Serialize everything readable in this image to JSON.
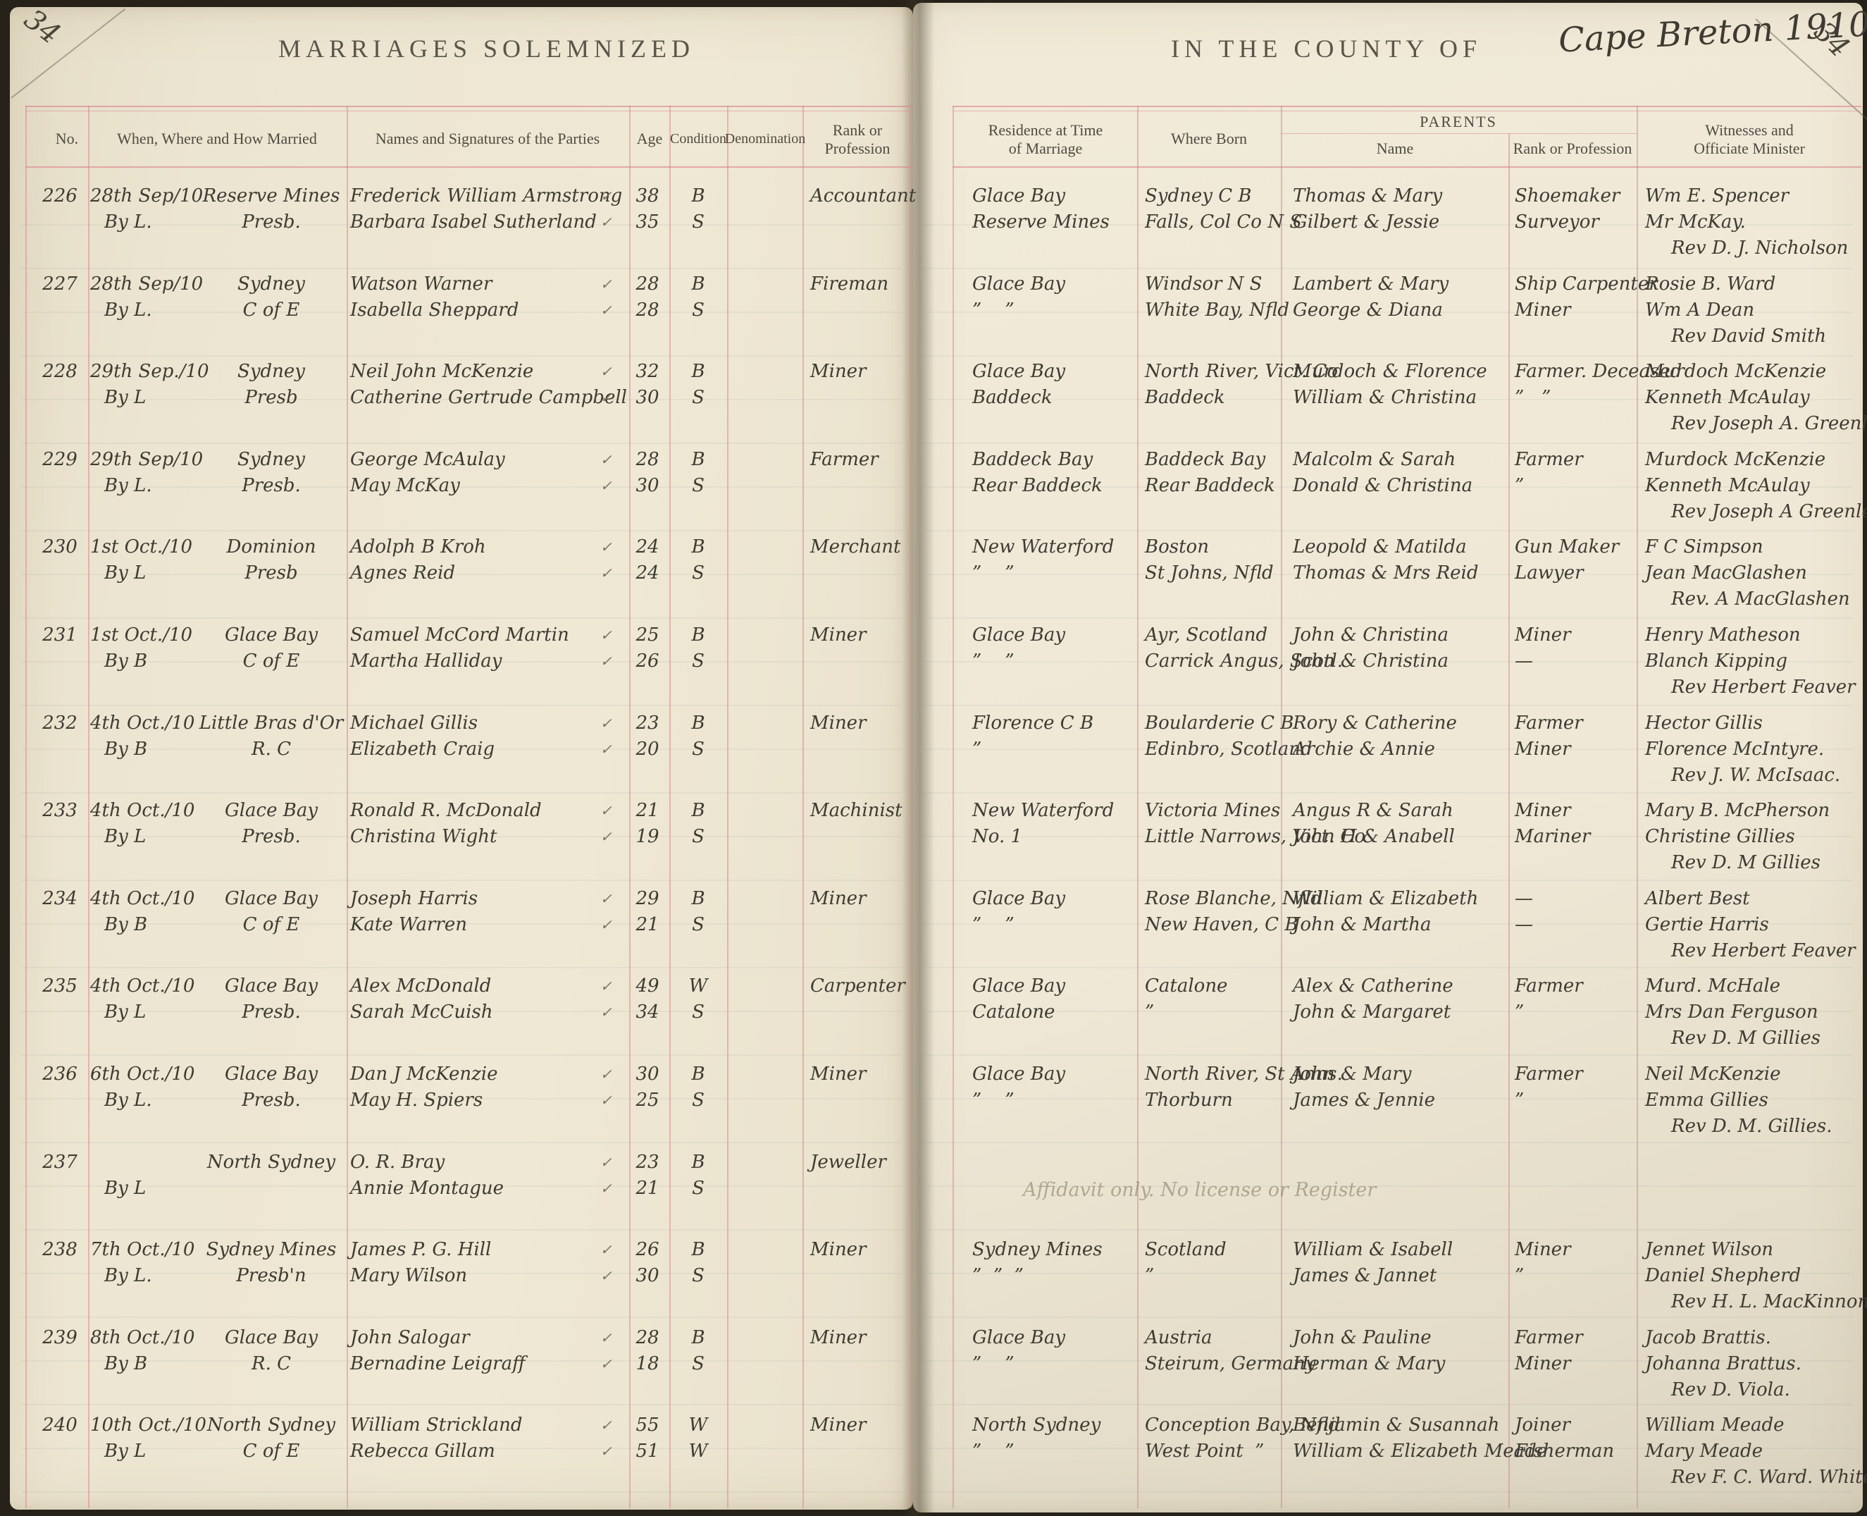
{
  "page": {
    "left_folio": "34",
    "right_folio": "34",
    "left_title": "MARRIAGES  SOLEMNIZED",
    "right_title_printed": "IN  THE  COUNTY  OF",
    "right_title_handwritten": "Cape Breton 1910"
  },
  "colors": {
    "paper": "#ece5d1",
    "rule_red": "#d8828a",
    "ink": "#3f3b33",
    "pencil": "#a99f85"
  },
  "columns": {
    "no": "No.",
    "when": "When, Where and How Married",
    "names": "Names and Signatures of the  Parties",
    "age": "Age",
    "condition": "Condition",
    "denomination": "Denomination",
    "rank": "Rank or Profession",
    "residence": "Residence at Time of Marriage",
    "born": "Where Born",
    "parents": "PARENTS",
    "parent_name": "Name",
    "parent_rank": "Rank or Profession",
    "witnesses": "Witnesses and Officiate Minister"
  },
  "note_237": "Affidavit only. No license or Register",
  "records": [
    {
      "no": "226",
      "date": "28th Sep/10",
      "method": "By L.",
      "place": "Reserve Mines",
      "denom": "Presb.",
      "g": {
        "name": "Frederick William Armstrong",
        "age": "38",
        "cond": "B",
        "prof": "Accountant",
        "res": "Glace Bay",
        "born": "Sydney C B",
        "pname": "Thomas & Mary",
        "pprof": "Shoemaker"
      },
      "b": {
        "name": "Barbara Isabel Sutherland",
        "age": "35",
        "cond": "S",
        "prof": "",
        "res": "Reserve Mines",
        "born": "Falls, Col Co N S",
        "pname": "Gilbert & Jessie",
        "pprof": "Surveyor"
      },
      "w": [
        "Wm E. Spencer",
        "Mr McKay.",
        "Rev D. J. Nicholson"
      ]
    },
    {
      "no": "227",
      "date": "28th Sep/10",
      "method": "By L.",
      "place": "Sydney",
      "denom": "C of E",
      "g": {
        "name": "Watson Warner",
        "age": "28",
        "cond": "B",
        "prof": "Fireman",
        "res": "Glace Bay",
        "born": "Windsor N S",
        "pname": "Lambert & Mary",
        "pprof": "Ship Carpenter"
      },
      "b": {
        "name": "Isabella Sheppard",
        "age": "28",
        "cond": "S",
        "prof": "",
        "res": "”    ”",
        "born": "White Bay, Nfld",
        "pname": "George & Diana",
        "pprof": "Miner"
      },
      "w": [
        "Rosie B. Ward",
        "Wm A Dean",
        "Rev David Smith"
      ]
    },
    {
      "no": "228",
      "date": "29th Sep./10",
      "method": "By L",
      "place": "Sydney",
      "denom": "Presb",
      "g": {
        "name": "Neil John McKenzie",
        "age": "32",
        "cond": "B",
        "prof": "Miner",
        "res": "Glace Bay",
        "born": "North River, Vict. Co",
        "pname": "Murdoch & Florence",
        "pprof": "Farmer. Deceased"
      },
      "b": {
        "name": "Catherine Gertrude Campbell",
        "age": "30",
        "cond": "S",
        "prof": "",
        "res": "Baddeck",
        "born": "Baddeck",
        "pname": "William & Christina",
        "pprof": "”   ”"
      },
      "w": [
        "Murdoch McKenzie",
        "Kenneth McAulay",
        "Rev Joseph A. Greenlees."
      ]
    },
    {
      "no": "229",
      "date": "29th Sep/10",
      "method": "By L.",
      "place": "Sydney",
      "denom": "Presb.",
      "g": {
        "name": "George McAulay",
        "age": "28",
        "cond": "B",
        "prof": "Farmer",
        "res": "Baddeck Bay",
        "born": "Baddeck Bay",
        "pname": "Malcolm & Sarah",
        "pprof": "Farmer"
      },
      "b": {
        "name": "May McKay",
        "age": "30",
        "cond": "S",
        "prof": "",
        "res": "Rear Baddeck",
        "born": "Rear Baddeck",
        "pname": "Donald & Christina",
        "pprof": "”"
      },
      "w": [
        "Murdock McKenzie",
        "Kenneth McAulay",
        "Rev Joseph A Greenlees."
      ]
    },
    {
      "no": "230",
      "date": "1st Oct./10",
      "method": "By L",
      "place": "Dominion",
      "denom": "Presb",
      "g": {
        "name": "Adolph B Kroh",
        "age": "24",
        "cond": "B",
        "prof": "Merchant",
        "res": "New Waterford",
        "born": "Boston",
        "pname": "Leopold & Matilda",
        "pprof": "Gun Maker"
      },
      "b": {
        "name": "Agnes Reid",
        "age": "24",
        "cond": "S",
        "prof": "",
        "res": "”    ”",
        "born": "St Johns, Nfld",
        "pname": "Thomas & Mrs Reid",
        "pprof": "Lawyer"
      },
      "w": [
        "F C Simpson",
        "Jean MacGlashen",
        "Rev. A MacGlashen"
      ]
    },
    {
      "no": "231",
      "date": "1st Oct./10",
      "method": "By B",
      "place": "Glace Bay",
      "denom": "C of E",
      "g": {
        "name": "Samuel McCord Martin",
        "age": "25",
        "cond": "B",
        "prof": "Miner",
        "res": "Glace Bay",
        "born": "Ayr, Scotland",
        "pname": "John & Christina",
        "pprof": "Miner"
      },
      "b": {
        "name": "Martha Halliday",
        "age": "26",
        "cond": "S",
        "prof": "",
        "res": "”    ”",
        "born": "Carrick Angus, Scotl.",
        "pname": "John & Christina",
        "pprof": "—"
      },
      "w": [
        "Henry Matheson",
        "Blanch Kipping",
        "Rev Herbert Feaver"
      ]
    },
    {
      "no": "232",
      "date": "4th Oct./10",
      "method": "By B",
      "place": "Little Bras d'Or",
      "denom": "R. C",
      "g": {
        "name": "Michael Gillis",
        "age": "23",
        "cond": "B",
        "prof": "Miner",
        "res": "Florence C B",
        "born": "Boularderie C B",
        "pname": "Rory & Catherine",
        "pprof": "Farmer"
      },
      "b": {
        "name": "Elizabeth Craig",
        "age": "20",
        "cond": "S",
        "prof": "",
        "res": "”",
        "born": "Edinbro, Scotland",
        "pname": "Archie & Annie",
        "pprof": "Miner"
      },
      "w": [
        "Hector Gillis",
        "Florence McIntyre.",
        "Rev J. W. McIsaac."
      ]
    },
    {
      "no": "233",
      "date": "4th Oct./10",
      "method": "By L",
      "place": "Glace Bay",
      "denom": "Presb.",
      "g": {
        "name": "Ronald R. McDonald",
        "age": "21",
        "cond": "B",
        "prof": "Machinist",
        "res": "New Waterford",
        "born": "Victoria Mines",
        "pname": "Angus R & Sarah",
        "pprof": "Miner"
      },
      "b": {
        "name": "Christina Wight",
        "age": "19",
        "cond": "S",
        "prof": "",
        "res": "No. 1",
        "born": "Little Narrows, Vict. Co",
        "pname": "John H & Anabell",
        "pprof": "Mariner"
      },
      "w": [
        "Mary B. McPherson",
        "Christine Gillies",
        "Rev D. M Gillies"
      ]
    },
    {
      "no": "234",
      "date": "4th Oct./10",
      "method": "By B",
      "place": "Glace Bay",
      "denom": "C of E",
      "g": {
        "name": "Joseph Harris",
        "age": "29",
        "cond": "B",
        "prof": "Miner",
        "res": "Glace Bay",
        "born": "Rose Blanche, Nfld",
        "pname": "William & Elizabeth",
        "pprof": "—"
      },
      "b": {
        "name": "Kate Warren",
        "age": "21",
        "cond": "S",
        "prof": "",
        "res": "”    ”",
        "born": "New Haven, C B",
        "pname": "John & Martha",
        "pprof": "—"
      },
      "w": [
        "Albert Best",
        "Gertie Harris",
        "Rev Herbert Feaver"
      ]
    },
    {
      "no": "235",
      "date": "4th Oct./10",
      "method": "By L",
      "place": "Glace Bay",
      "denom": "Presb.",
      "g": {
        "name": "Alex McDonald",
        "age": "49",
        "cond": "W",
        "prof": "Carpenter",
        "res": "Glace Bay",
        "born": "Catalone",
        "pname": "Alex & Catherine",
        "pprof": "Farmer"
      },
      "b": {
        "name": "Sarah McCuish",
        "age": "34",
        "cond": "S",
        "prof": "",
        "res": "Catalone",
        "born": "”",
        "pname": "John & Margaret",
        "pprof": "”"
      },
      "w": [
        "Murd. McHale",
        "Mrs Dan Ferguson",
        "Rev D. M Gillies"
      ]
    },
    {
      "no": "236",
      "date": "6th Oct./10",
      "method": "By L.",
      "place": "Glace Bay",
      "denom": "Presb.",
      "g": {
        "name": "Dan J McKenzie",
        "age": "30",
        "cond": "B",
        "prof": "Miner",
        "res": "Glace Bay",
        "born": "North River, St Anns.",
        "pname": "John & Mary",
        "pprof": "Farmer"
      },
      "b": {
        "name": "May H. Spiers",
        "age": "25",
        "cond": "S",
        "prof": "",
        "res": "”    ”",
        "born": "Thorburn",
        "pname": "James & Jennie",
        "pprof": "”"
      },
      "w": [
        "Neil McKenzie",
        "Emma Gillies",
        "Rev D. M. Gillies."
      ]
    },
    {
      "no": "237",
      "date": "",
      "method": "By L",
      "place": "North Sydney",
      "denom": "",
      "g": {
        "name": "O. R. Bray",
        "age": "23",
        "cond": "B",
        "prof": "Jeweller",
        "res": "",
        "born": "",
        "pname": "",
        "pprof": ""
      },
      "b": {
        "name": "Annie Montague",
        "age": "21",
        "cond": "S",
        "prof": "",
        "res": "",
        "born": "",
        "pname": "",
        "pprof": ""
      },
      "w": []
    },
    {
      "no": "238",
      "date": "7th Oct./10",
      "method": "By L.",
      "place": "Sydney Mines",
      "denom": "Presb'n",
      "g": {
        "name": "James P. G. Hill",
        "age": "26",
        "cond": "B",
        "prof": "Miner",
        "res": "Sydney Mines",
        "born": "Scotland",
        "pname": "William & Isabell",
        "pprof": "Miner"
      },
      "b": {
        "name": "Mary Wilson",
        "age": "30",
        "cond": "S",
        "prof": "",
        "res": "”  ”  ”",
        "born": "”",
        "pname": "James & Jannet",
        "pprof": "”"
      },
      "w": [
        "Jennet Wilson",
        "Daniel Shepherd",
        "Rev H. L. MacKinnon"
      ]
    },
    {
      "no": "239",
      "date": "8th Oct./10",
      "method": "By B",
      "place": "Glace Bay",
      "denom": "R. C",
      "g": {
        "name": "John Salogar",
        "age": "28",
        "cond": "B",
        "prof": "Miner",
        "res": "Glace Bay",
        "born": "Austria",
        "pname": "John & Pauline",
        "pprof": "Farmer"
      },
      "b": {
        "name": "Bernadine Leigraff",
        "age": "18",
        "cond": "S",
        "prof": "",
        "res": "”    ”",
        "born": "Steirum, Germany",
        "pname": "Herman & Mary",
        "pprof": "Miner"
      },
      "w": [
        "Jacob Brattis.",
        "Johanna Brattus.",
        "Rev D. Viola."
      ]
    },
    {
      "no": "240",
      "date": "10th Oct./10",
      "method": "By L",
      "place": "North Sydney",
      "denom": "C of E",
      "g": {
        "name": "William Strickland",
        "age": "55",
        "cond": "W",
        "prof": "Miner",
        "res": "North Sydney",
        "born": "Conception Bay, Nfld",
        "pname": "Benjamin & Susannah",
        "pprof": "Joiner"
      },
      "b": {
        "name": "Rebecca Gillam",
        "age": "51",
        "cond": "W",
        "prof": "",
        "res": "”    ”",
        "born": "West Point  ”",
        "pname": "William & Elizabeth Meade",
        "pprof": "Fisherman"
      },
      "w": [
        "William Meade",
        "Mary Meade",
        "Rev F. C. Ward. White"
      ]
    }
  ]
}
